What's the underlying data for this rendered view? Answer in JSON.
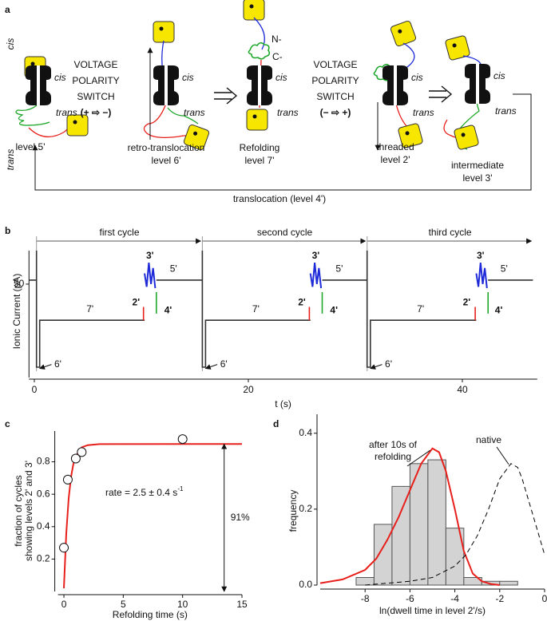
{
  "panel_a": {
    "letter": "a",
    "side_cis": "cis",
    "side_trans": "trans",
    "switches": [
      [
        "VOLTAGE",
        "POLARITY",
        "SWITCH",
        "(+ ⇨ −)"
      ],
      [
        "VOLTAGE",
        "POLARITY",
        "SWITCH",
        "(− ⇨ +)"
      ]
    ],
    "states": [
      {
        "cis": "cis",
        "trans": "trans",
        "label": [
          "level 5'"
        ]
      },
      {
        "cis": "cis",
        "trans": "trans",
        "label": [
          "retro-translocation",
          "level 6'"
        ]
      },
      {
        "cis": "cis",
        "trans": "trans",
        "label": [
          "Refolding",
          "level 7'"
        ]
      },
      {
        "cis": "cis",
        "trans": "trans",
        "label": [
          "threaded",
          "level 2'"
        ]
      },
      {
        "cis": "cis",
        "trans": "trans",
        "label": [
          "intermediate",
          "level 3'"
        ]
      }
    ],
    "termini": [
      "N-",
      "C-"
    ],
    "return_label": "translocation (level 4')"
  },
  "chart_data": [
    {
      "type": "line",
      "letter": "b",
      "ylabel": "Ionic Current (pA)",
      "xlabel": "t (s)",
      "xlim": [
        -0.5,
        47
      ],
      "xticks": [
        0,
        20,
        40
      ],
      "ylim": [
        -15,
        75
      ],
      "yticks": [
        50
      ],
      "cycles": [
        {
          "label": "first cycle",
          "start": 0.2,
          "end": 15.7,
          "levels": [
            "7'",
            "5'",
            "6'",
            "2'",
            "3'",
            "4'"
          ]
        },
        {
          "label": "second cycle",
          "start": 15.7,
          "end": 31.1,
          "levels": [
            "7'",
            "5'",
            "6'",
            "2'",
            "3'",
            "4'"
          ]
        },
        {
          "label": "third cycle",
          "start": 31.1,
          "end": 46.6,
          "levels": [
            "7'",
            "5'",
            "6'",
            "2'",
            "3'",
            "4'"
          ]
        }
      ],
      "series": [
        {
          "color": "#333333",
          "x": [
            -0.5,
            0.2,
            0.2,
            0.2,
            0.5,
            0.5,
            10.3,
            null,
            11.4,
            15.7,
            15.7,
            15.7,
            16,
            16,
            25.8,
            null,
            26.9,
            31.1,
            31.1,
            31.1,
            31.4,
            31.4,
            41.3,
            null,
            42.4,
            46.6
          ],
          "values": [
            53,
            53,
            75,
            -12,
            -12,
            23,
            23,
            null,
            53,
            53,
            75,
            -12,
            -12,
            23,
            23,
            null,
            53,
            53,
            75,
            -12,
            -12,
            23,
            23,
            null,
            53,
            53
          ]
        },
        {
          "color": "#e8201c",
          "x": [
            10.2,
            10.2,
            null,
            25.7,
            25.7,
            null,
            41.2,
            41.2
          ],
          "values": [
            23,
            33,
            null,
            23,
            33,
            null,
            23,
            33
          ]
        },
        {
          "color": "#1f2bd8",
          "x": [
            10.3,
            10.5,
            10.7,
            10.9,
            11.1,
            11.3,
            null,
            25.8,
            26.0,
            26.2,
            26.4,
            26.6,
            26.8,
            null,
            41.3,
            41.5,
            41.7,
            41.9,
            42.1,
            42.3
          ],
          "values": [
            58,
            48,
            66,
            50,
            62,
            47,
            null,
            58,
            48,
            66,
            50,
            62,
            47,
            null,
            58,
            48,
            66,
            50,
            62,
            47
          ]
        },
        {
          "color": "#1fa82b",
          "x": [
            11.4,
            11.4,
            null,
            26.9,
            26.9,
            null,
            42.4,
            42.4
          ],
          "values": [
            28,
            44,
            null,
            28,
            44,
            null,
            28,
            44
          ]
        }
      ]
    },
    {
      "type": "scatter",
      "letter": "c",
      "ylabel": [
        "fraction of cycles",
        "showing levels 2' and 3'"
      ],
      "xlabel": "Refolding time (s)",
      "xlim": [
        -0.5,
        15
      ],
      "xticks": [
        0,
        5,
        10,
        15
      ],
      "ylim": [
        0,
        0.99
      ],
      "yticks": [
        0.2,
        0.4,
        0.6,
        0.8
      ],
      "points": {
        "x": [
          0,
          0.33,
          1,
          1.5,
          10
        ],
        "values": [
          0.27,
          0.69,
          0.82,
          0.86,
          0.94
        ],
        "errors": [
          0.03,
          0.03,
          0.02,
          0.02,
          0.01
        ]
      },
      "fit": {
        "color": "#e8201c",
        "x": [
          0,
          0.2,
          0.4,
          0.6,
          0.8,
          1,
          1.5,
          2,
          3,
          15
        ],
        "values": [
          0.02,
          0.358,
          0.575,
          0.708,
          0.787,
          0.835,
          0.889,
          0.903,
          0.909,
          0.91
        ]
      },
      "rate_text": "rate = 2.5 ± 0.4 s",
      "rate_unit": "-1",
      "arrow": {
        "x": 13.5,
        "from": 0,
        "to": 0.91,
        "label": "91%"
      }
    },
    {
      "type": "histogram",
      "letter": "d",
      "ylabel": "frequency",
      "xlabel": "ln(dwell time in level 2'/s)",
      "xlim": [
        -10,
        0
      ],
      "xticks": [
        -8,
        -6,
        -4,
        -2,
        0
      ],
      "ylim": [
        0,
        0.45
      ],
      "yticks": [
        {
          "value": 0,
          "label": "0.0"
        },
        0.2,
        0.4
      ],
      "bins": [
        -8.4,
        -7.6,
        -6.8,
        -6.0,
        -5.2,
        -4.4,
        -3.6,
        -2.8,
        -2.0,
        -1.2
      ],
      "counts": [
        0.02,
        0.16,
        0.26,
        0.32,
        0.33,
        0.15,
        0.02,
        0.01,
        0.01
      ],
      "bar_color": "#d3d3d3",
      "curves": [
        {
          "color": "#e8201c",
          "dashed": false,
          "x": [
            -10,
            -9,
            -8,
            -7.5,
            -7,
            -6.5,
            -6,
            -5.5,
            -5,
            -4.7,
            -4.4,
            -4,
            -3.6,
            -3.2,
            -2.8,
            -2.4,
            -2
          ],
          "values": [
            0.005,
            0.015,
            0.04,
            0.07,
            0.12,
            0.18,
            0.25,
            0.32,
            0.36,
            0.35,
            0.3,
            0.2,
            0.09,
            0.03,
            0.01,
            0.003,
            0
          ]
        },
        {
          "color": "#000000",
          "dashed": true,
          "x": [
            -8,
            -6,
            -5,
            -4,
            -3.5,
            -3,
            -2.5,
            -2,
            -1.5,
            -1.2,
            -1,
            -0.5,
            0
          ],
          "values": [
            0,
            0.01,
            0.02,
            0.05,
            0.08,
            0.13,
            0.2,
            0.28,
            0.32,
            0.31,
            0.28,
            0.18,
            0.08
          ]
        }
      ],
      "annotations": [
        [
          "after 10s of",
          "refolding"
        ],
        [
          "native"
        ]
      ]
    }
  ]
}
